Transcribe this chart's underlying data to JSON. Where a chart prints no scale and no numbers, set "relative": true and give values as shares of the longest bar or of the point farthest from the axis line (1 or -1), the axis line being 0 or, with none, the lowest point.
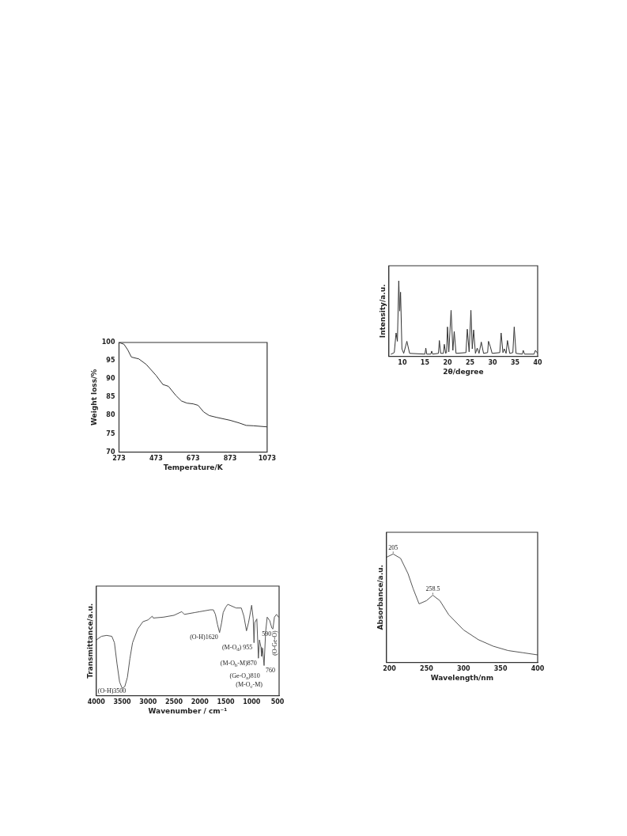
{
  "chart_data": [
    {
      "type": "line",
      "xlabel": "Temperature/K",
      "ylabel": "Weight loss/%",
      "color": "#333333",
      "grid": false,
      "legend": false,
      "marker": "none",
      "x": [
        273,
        300,
        320,
        340,
        380,
        420,
        473,
        510,
        540,
        580,
        610,
        640,
        673,
        700,
        730,
        760,
        800,
        873,
        920,
        960,
        1000,
        1073
      ],
      "values": [
        100,
        99.5,
        98,
        96,
        95.5,
        94,
        91,
        88.5,
        88,
        85.5,
        84,
        83.4,
        83.2,
        82.8,
        81,
        80,
        79.5,
        78.7,
        78,
        77.3,
        77.2,
        76.9
      ],
      "xlim": [
        273,
        1073
      ],
      "xticks": [
        273,
        473,
        673,
        873,
        1073
      ],
      "ylim": [
        70,
        100
      ],
      "yticks": [
        70,
        75,
        80,
        85,
        90,
        95,
        100
      ]
    },
    {
      "type": "line",
      "xlabel": "2θ/degree",
      "ylabel": "Intensity/a.u.",
      "color": "#333333",
      "grid": false,
      "legend": false,
      "marker": "none",
      "relative": true,
      "x": [
        7.5,
        8.2,
        8.6,
        8.9,
        9.2,
        9.4,
        9.6,
        9.9,
        10.3,
        11.0,
        11.6,
        15.0,
        15.2,
        15.4,
        16.3,
        16.5,
        16.7,
        18.0,
        18.2,
        18.5,
        19.1,
        19.3,
        19.6,
        19.8,
        20.0,
        20.3,
        20.8,
        21.2,
        21.5,
        21.9,
        24.1,
        24.4,
        24.8,
        25.2,
        25.5,
        25.8,
        26.2,
        26.6,
        27.0,
        27.5,
        28.0,
        28.9,
        29.1,
        29.5,
        29.9,
        31.6,
        31.9,
        32.3,
        32.6,
        33.0,
        33.3,
        33.8,
        34.5,
        34.8,
        35.2,
        36.6,
        36.8,
        37.1,
        39.2,
        39.5,
        40.0
      ],
      "values": [
        0.03,
        0.05,
        0.31,
        0.2,
        1,
        0.6,
        0.85,
        0.1,
        0.04,
        0.2,
        0.04,
        0.03,
        0.11,
        0.03,
        0.03,
        0.07,
        0.03,
        0.04,
        0.21,
        0.04,
        0.04,
        0.16,
        0.04,
        0.05,
        0.39,
        0.06,
        0.61,
        0.08,
        0.33,
        0.04,
        0.05,
        0.36,
        0.06,
        0.61,
        0.1,
        0.35,
        0.04,
        0.11,
        0.04,
        0.19,
        0.04,
        0.05,
        0.2,
        0.13,
        0.04,
        0.05,
        0.31,
        0.05,
        0.1,
        0.04,
        0.21,
        0.04,
        0.05,
        0.39,
        0.04,
        0.03,
        0.08,
        0.03,
        0.03,
        0.08,
        0.04
      ],
      "xlim": [
        7,
        40
      ],
      "xticks": [
        10,
        15,
        20,
        25,
        30,
        35,
        40
      ]
    },
    {
      "type": "line",
      "xlabel": "Wavenumber / cm⁻¹",
      "ylabel": "Transmittance/a.u.",
      "color": "#555555",
      "grid": false,
      "legend": false,
      "marker": "none",
      "relative": true,
      "x": [
        4000,
        3900,
        3800,
        3700,
        3650,
        3600,
        3550,
        3500,
        3450,
        3400,
        3350,
        3300,
        3200,
        3100,
        3000,
        2920,
        2900,
        2700,
        2500,
        2350,
        2300,
        2100,
        2000,
        1800,
        1740,
        1700,
        1660,
        1620,
        1580,
        1550,
        1500,
        1460,
        1300,
        1200,
        1150,
        1100,
        1060,
        1000,
        970,
        955,
        940,
        900,
        870,
        850,
        820,
        810,
        790,
        760,
        730,
        700,
        650,
        610,
        590,
        560,
        520,
        480
      ],
      "values": [
        0.61,
        0.65,
        0.66,
        0.65,
        0.58,
        0.35,
        0.15,
        0.08,
        0.1,
        0.2,
        0.41,
        0.58,
        0.73,
        0.81,
        0.83,
        0.87,
        0.85,
        0.86,
        0.88,
        0.92,
        0.89,
        0.91,
        0.92,
        0.94,
        0.94,
        0.89,
        0.78,
        0.69,
        0.8,
        0.91,
        0.97,
        1,
        0.96,
        0.96,
        0.87,
        0.71,
        0.8,
        0.99,
        0.84,
        0.58,
        0.8,
        0.84,
        0.41,
        0.61,
        0.53,
        0.43,
        0.52,
        0.33,
        0.7,
        0.86,
        0.82,
        0.74,
        0.73,
        0.86,
        0.89,
        0.86
      ],
      "xlim": [
        4000,
        470
      ],
      "xticks": [
        4000,
        3500,
        3000,
        2500,
        2000,
        1500,
        1000,
        500
      ],
      "annotations": [
        {
          "text": "(O-H)3500",
          "x": 3500,
          "y": 0.08
        },
        {
          "text": "(O-H)1620",
          "x": 1620,
          "y": 0.69
        },
        {
          "text": "(M-O$_{d}$) 955",
          "x": 955,
          "y": 0.58
        },
        {
          "text": "(M-O$_{b}$-M)870",
          "x": 870,
          "y": 0.41
        },
        {
          "text": "(Ge-O$_{a}$)810",
          "x": 810,
          "y": 0.43
        },
        {
          "text": "760",
          "x": 760,
          "y": 0.33
        },
        {
          "text": "(M-O$_{c}$-M)",
          "x": 760,
          "y": 0.33
        },
        {
          "text": "590",
          "x": 590,
          "y": 0.73
        },
        {
          "text": "(O-Ge-O)",
          "x": 590,
          "y": 0.73
        }
      ]
    },
    {
      "type": "line",
      "xlabel": "Wavelength/nm",
      "ylabel": "Absorbance/a.u.",
      "color": "#555555",
      "grid": false,
      "legend": false,
      "marker": "none",
      "relative": true,
      "x": [
        196,
        205,
        215,
        225,
        232,
        240,
        250,
        258.5,
        268,
        280,
        300,
        320,
        340,
        360,
        380,
        400
      ],
      "values": [
        0.97,
        1,
        0.96,
        0.82,
        0.68,
        0.54,
        0.57,
        0.62,
        0.57,
        0.44,
        0.3,
        0.21,
        0.15,
        0.11,
        0.09,
        0.07
      ],
      "xlim": [
        196,
        400
      ],
      "xticks": [
        200,
        250,
        300,
        350,
        400
      ],
      "annotations": [
        {
          "text": "205",
          "x": 205,
          "y": 1
        },
        {
          "text": "258.5",
          "x": 258.5,
          "y": 0.62
        }
      ]
    }
  ]
}
